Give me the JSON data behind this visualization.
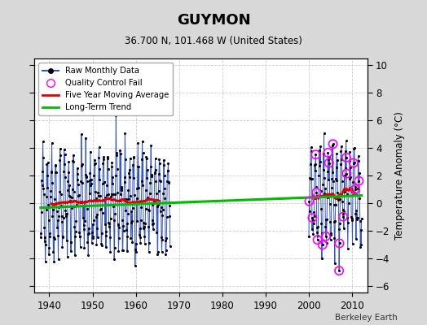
{
  "title": "GUYMON",
  "subtitle": "36.700 N, 101.468 W (United States)",
  "credit": "Berkeley Earth",
  "ylabel": "Temperature Anomaly (°C)",
  "xlim": [
    1936.5,
    2013.5
  ],
  "ylim": [
    -6.5,
    10.5
  ],
  "yticks": [
    -6,
    -4,
    -2,
    0,
    2,
    4,
    6,
    8,
    10
  ],
  "xticks": [
    1940,
    1950,
    1960,
    1970,
    1980,
    1990,
    2000,
    2010
  ],
  "bg_color": "#d8d8d8",
  "plot_bg": "#ffffff",
  "raw_color": "#3355cc",
  "dot_color": "#000000",
  "ma_color": "#dd0000",
  "trend_color": "#00bb00",
  "qc_color": "#ff00ff",
  "seed_early": 42,
  "seed_late": 99,
  "seed_qc": 10,
  "early_start": 1938.0,
  "early_end": 1968.0,
  "late_start": 2000.0,
  "late_end": 2012.2,
  "early_bias": 0.1,
  "late_bias": 0.5,
  "seasonal_amplitude": 2.8,
  "noise_std": 1.0,
  "n_qc_late": 18
}
